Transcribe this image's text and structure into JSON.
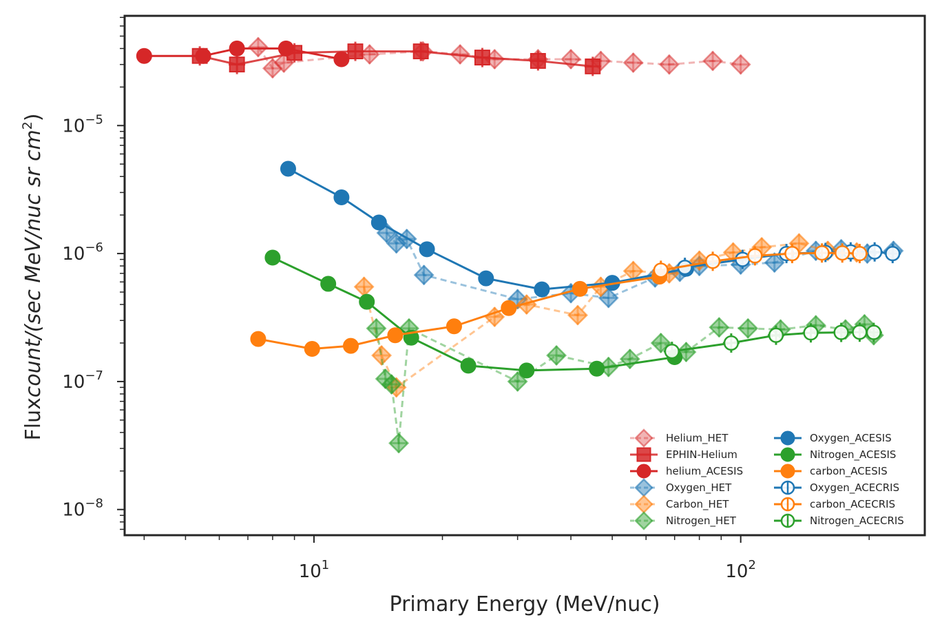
{
  "chart_data": {
    "type": "scatter",
    "title": "",
    "xlabel": "Primary Energy (MeV/nuc)",
    "ylabel": "Flux count/(sec MeV/nuc sr cm^2)",
    "ylabel_parts": [
      "Flux",
      "count/(sec MeV/nuc sr cm",
      "2",
      ")"
    ],
    "xscale": "log",
    "yscale": "log",
    "xlim": [
      3.6,
      270
    ],
    "ylim": [
      6.3e-09,
      7.2e-05
    ],
    "grid": false,
    "legend_placement": "lower right",
    "x_tick_labels": [
      {
        "base": "10",
        "exp": "1",
        "value": 10
      },
      {
        "base": "10",
        "exp": "2",
        "value": 100
      }
    ],
    "y_tick_labels": [
      {
        "base": "10",
        "exp": "−8",
        "value": 1e-08
      },
      {
        "base": "10",
        "exp": "−7",
        "value": 1e-07
      },
      {
        "base": "10",
        "exp": "−6",
        "value": 1e-06
      },
      {
        "base": "10",
        "exp": "−5",
        "value": 1e-05
      }
    ],
    "series": [
      {
        "name": "Helium_HET",
        "color": "#d62728",
        "marker": "diamond",
        "line": "dashed",
        "alpha": 0.35,
        "errorbars": true,
        "points": [
          [
            7.4,
            4.1e-05
          ],
          [
            8.0,
            2.8e-05
          ],
          [
            8.5,
            3.1e-05
          ],
          [
            13.5,
            3.6e-05
          ],
          [
            18.0,
            3.8e-05
          ],
          [
            22.0,
            3.6e-05
          ],
          [
            26.5,
            3.3e-05
          ],
          [
            33.5,
            3.3e-05
          ],
          [
            40.0,
            3.3e-05
          ],
          [
            47.0,
            3.2e-05
          ],
          [
            56.0,
            3.1e-05
          ],
          [
            68.0,
            3e-05
          ],
          [
            86.0,
            3.2e-05
          ],
          [
            100.0,
            3e-05
          ]
        ]
      },
      {
        "name": "EPHIN-Helium",
        "color": "#d62728",
        "marker": "square",
        "line": "solid",
        "alpha": 0.85,
        "errorbars": true,
        "points": [
          [
            5.4,
            3.5e-05
          ],
          [
            6.6,
            3e-05
          ],
          [
            9.0,
            3.7e-05
          ],
          [
            12.5,
            3.8e-05
          ],
          [
            17.8,
            3.8e-05
          ],
          [
            24.8,
            3.4e-05
          ],
          [
            33.5,
            3.2e-05
          ],
          [
            45.0,
            2.9e-05
          ]
        ]
      },
      {
        "name": "helium_ACESIS",
        "color": "#d62728",
        "marker": "circle",
        "line": "solid",
        "alpha": 1.0,
        "errorbars": false,
        "points": [
          [
            4.0,
            3.5e-05
          ],
          [
            5.5,
            3.5e-05
          ],
          [
            6.6,
            4e-05
          ],
          [
            8.6,
            4e-05
          ],
          [
            11.6,
            3.3e-05
          ]
        ]
      },
      {
        "name": "Oxygen_HET",
        "color": "#1f77b4",
        "marker": "diamond",
        "line": "dashed",
        "alpha": 0.45,
        "errorbars": true,
        "points": [
          [
            14.8,
            1.45e-06
          ],
          [
            15.6,
            1.2e-06
          ],
          [
            16.5,
            1.3e-06
          ],
          [
            18.1,
            6.8e-07
          ],
          [
            30.0,
            4.4e-07
          ],
          [
            40.0,
            4.9e-07
          ],
          [
            49.0,
            4.5e-07
          ],
          [
            63.0,
            6.5e-07
          ],
          [
            72.0,
            7.2e-07
          ],
          [
            80.0,
            8e-07
          ],
          [
            100.0,
            8.2e-07
          ],
          [
            120.0,
            8.5e-07
          ],
          [
            150.0,
            1.05e-06
          ],
          [
            172.0,
            1.08e-06
          ],
          [
            198.0,
            1e-06
          ],
          [
            228.0,
            1.05e-06
          ]
        ]
      },
      {
        "name": "Carbon_HET",
        "color": "#ff7f0e",
        "marker": "diamond",
        "line": "dashed",
        "alpha": 0.45,
        "errorbars": true,
        "points": [
          [
            13.1,
            5.5e-07
          ],
          [
            14.4,
            1.6e-07
          ],
          [
            15.6,
            9e-08
          ],
          [
            26.5,
            3.2e-07
          ],
          [
            31.5,
            4e-07
          ],
          [
            41.5,
            3.3e-07
          ],
          [
            47.0,
            5.5e-07
          ],
          [
            56.0,
            7.3e-07
          ],
          [
            68.0,
            7e-07
          ],
          [
            80.0,
            8.8e-07
          ],
          [
            96.0,
            1.02e-06
          ],
          [
            112.0,
            1.12e-06
          ],
          [
            137.0,
            1.2e-06
          ],
          [
            160.0,
            1.05e-06
          ],
          [
            187.0,
            1.02e-06
          ]
        ]
      },
      {
        "name": "Nitrogen_HET",
        "color": "#2ca02c",
        "marker": "diamond",
        "line": "dashed",
        "alpha": 0.45,
        "errorbars": true,
        "points": [
          [
            14.0,
            2.6e-07
          ],
          [
            14.7,
            1.05e-07
          ],
          [
            15.2,
            9.5e-08
          ],
          [
            15.8,
            3.3e-08
          ],
          [
            16.7,
            2.6e-07
          ],
          [
            30.0,
            1e-07
          ],
          [
            37.0,
            1.6e-07
          ],
          [
            49.0,
            1.3e-07
          ],
          [
            55.0,
            1.5e-07
          ],
          [
            65.0,
            2e-07
          ],
          [
            74.5,
            1.7e-07
          ],
          [
            89.0,
            2.65e-07
          ],
          [
            104.0,
            2.6e-07
          ],
          [
            124.0,
            2.55e-07
          ],
          [
            150.0,
            2.75e-07
          ],
          [
            176.0,
            2.55e-07
          ],
          [
            195.0,
            2.8e-07
          ],
          [
            205.0,
            2.3e-07
          ]
        ]
      },
      {
        "name": "Oxygen_ACESIS",
        "color": "#1f77b4",
        "marker": "circle",
        "line": "solid",
        "alpha": 1.0,
        "errorbars": false,
        "points": [
          [
            8.7,
            4.6e-06
          ],
          [
            11.6,
            2.75e-06
          ],
          [
            14.2,
            1.75e-06
          ],
          [
            18.4,
            1.08e-06
          ],
          [
            25.3,
            6.4e-07
          ],
          [
            34.2,
            5.25e-07
          ],
          [
            50.0,
            5.9e-07
          ],
          [
            74.5,
            7.6e-07
          ]
        ]
      },
      {
        "name": "Nitrogen_ACESIS",
        "color": "#2ca02c",
        "marker": "circle",
        "line": "solid",
        "alpha": 1.0,
        "errorbars": false,
        "points": [
          [
            8.0,
            9.3e-07
          ],
          [
            10.8,
            5.8e-07
          ],
          [
            13.3,
            4.2e-07
          ],
          [
            16.9,
            2.2e-07
          ],
          [
            23.0,
            1.33e-07
          ],
          [
            31.5,
            1.22e-07
          ],
          [
            46.0,
            1.26e-07
          ],
          [
            70.0,
            1.55e-07
          ]
        ]
      },
      {
        "name": "carbon_ACESIS",
        "color": "#ff7f0e",
        "marker": "circle",
        "line": "solid",
        "alpha": 1.0,
        "errorbars": false,
        "points": [
          [
            7.4,
            2.15e-07
          ],
          [
            9.9,
            1.8e-07
          ],
          [
            12.2,
            1.9e-07
          ],
          [
            15.5,
            2.3e-07
          ],
          [
            21.3,
            2.7e-07
          ],
          [
            28.6,
            3.75e-07
          ],
          [
            42.0,
            5.3e-07
          ],
          [
            64.5,
            6.6e-07
          ]
        ]
      },
      {
        "name": "Oxygen_ACECRIS",
        "color": "#1f77b4",
        "marker": "circle-open",
        "line": "solid",
        "alpha": 1.0,
        "errorbars": true,
        "points": [
          [
            74.0,
            7.8e-07
          ],
          [
            101.0,
            9e-07
          ],
          [
            128.0,
            1e-06
          ],
          [
            158.0,
            1.02e-06
          ],
          [
            181.0,
            1.03e-06
          ],
          [
            206.0,
            1.03e-06
          ],
          [
            227.0,
            1e-06
          ]
        ]
      },
      {
        "name": "carbon_ACECRIS",
        "color": "#ff7f0e",
        "marker": "circle-open",
        "line": "solid",
        "alpha": 1.0,
        "errorbars": true,
        "points": [
          [
            65.0,
            7.4e-07
          ],
          [
            86.0,
            8.7e-07
          ],
          [
            108.0,
            9.6e-07
          ],
          [
            132.0,
            1e-06
          ],
          [
            155.0,
            1.01e-06
          ],
          [
            173.0,
            1.01e-06
          ],
          [
            190.0,
            1e-06
          ]
        ]
      },
      {
        "name": "Nitrogen_ACECRIS",
        "color": "#2ca02c",
        "marker": "circle-open",
        "line": "solid",
        "alpha": 1.0,
        "errorbars": true,
        "points": [
          [
            69.0,
            1.72e-07
          ],
          [
            95.0,
            2e-07
          ],
          [
            121.0,
            2.3e-07
          ],
          [
            146.0,
            2.4e-07
          ],
          [
            172.0,
            2.42e-07
          ],
          [
            190.0,
            2.43e-07
          ],
          [
            205.0,
            2.42e-07
          ]
        ]
      }
    ]
  }
}
